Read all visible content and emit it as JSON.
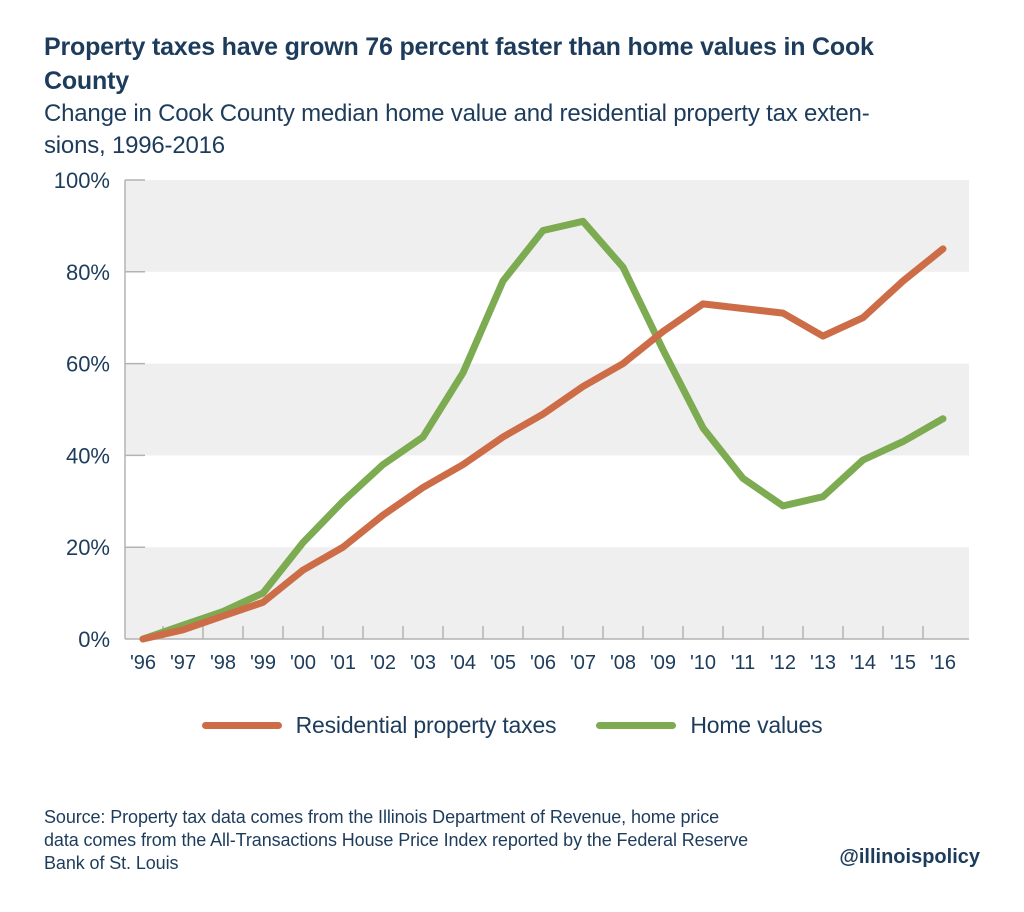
{
  "header": {
    "title_lines": [
      "Property taxes have grown 76 percent faster than home values in Cook",
      "County"
    ],
    "subtitle_lines": [
      "Change in Cook County median home value and residential property tax exten-",
      "sions, 1996-2016"
    ]
  },
  "chart_data": {
    "type": "line",
    "title": "Change in Cook County median home value and residential property tax extensions, 1996-2016",
    "x_labels": [
      "'96",
      "'97",
      "'98",
      "'99",
      "'00",
      "'01",
      "'02",
      "'03",
      "'04",
      "'05",
      "'06",
      "'07",
      "'08",
      "'09",
      "'10",
      "'11",
      "'12",
      "'13",
      "'14",
      "'15",
      "'16"
    ],
    "series": [
      {
        "name": "Residential property taxes",
        "color": "#cd6d48",
        "values": [
          0,
          2,
          5,
          8,
          15,
          20,
          27,
          33,
          38,
          44,
          49,
          55,
          60,
          67,
          73,
          72,
          71,
          66,
          70,
          78,
          85
        ]
      },
      {
        "name": "Home values",
        "color": "#7dab51",
        "values": [
          0,
          3,
          6,
          10,
          21,
          30,
          38,
          44,
          58,
          78,
          89,
          91,
          81,
          63,
          46,
          35,
          29,
          31,
          39,
          43,
          48
        ]
      }
    ],
    "y_ticks": [
      "0%",
      "20%",
      "40%",
      "60%",
      "80%",
      "100%"
    ],
    "y_tick_values": [
      0,
      20,
      40,
      60,
      80,
      100
    ],
    "ylim": [
      0,
      100
    ],
    "grid": "alternating-bands",
    "band_color": "#efefef",
    "axis_color": "#b3b3b3",
    "label_color": "#1d3c5c",
    "legend_position": "bottom"
  },
  "footer": {
    "source_lines": [
      "Source: Property tax data comes from the Illinois Department of Revenue, home price",
      "data comes from the All-Transactions House Price Index reported by the Federal Reserve",
      "Bank of St. Louis"
    ],
    "handle": "@illinoispolicy"
  }
}
